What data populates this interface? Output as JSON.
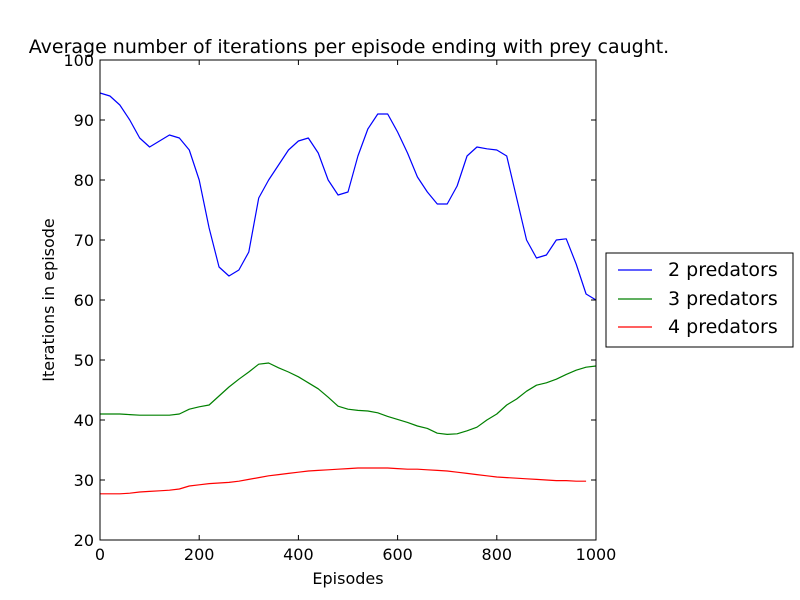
{
  "chart_data": {
    "type": "line",
    "title": "Average number of iterations per episode ending with prey caught.",
    "xlabel": "Episodes",
    "ylabel": "Iterations in episode",
    "xlim": [
      0,
      1000
    ],
    "ylim": [
      20,
      100
    ],
    "xticks": [
      0,
      200,
      400,
      600,
      800,
      1000
    ],
    "yticks": [
      20,
      30,
      40,
      50,
      60,
      70,
      80,
      90,
      100
    ],
    "grid": false,
    "legend_position": "outside-right",
    "series": [
      {
        "name": "2 predators",
        "color": "#0000ff",
        "x": [
          0,
          20,
          40,
          60,
          80,
          100,
          120,
          140,
          160,
          180,
          200,
          220,
          240,
          260,
          280,
          300,
          320,
          340,
          360,
          380,
          400,
          420,
          440,
          460,
          480,
          500,
          520,
          540,
          560,
          580,
          600,
          620,
          640,
          660,
          680,
          700,
          720,
          740,
          760,
          780,
          800,
          820,
          840,
          860,
          880,
          900,
          920,
          940,
          960,
          980,
          1000
        ],
        "y": [
          94.5,
          94,
          92.5,
          90,
          87,
          85.5,
          86.5,
          87.5,
          87,
          85,
          80,
          72,
          65.5,
          64,
          65,
          68,
          77,
          80,
          82.5,
          85,
          86.5,
          87,
          84.5,
          80,
          77.5,
          78,
          84,
          88.5,
          91,
          91,
          88,
          84.5,
          80.5,
          78,
          76,
          76,
          79,
          84,
          85.5,
          85.2,
          85,
          84,
          77,
          70,
          67,
          67.5,
          70,
          70.2,
          66,
          61,
          60
        ]
      },
      {
        "name": "3 predators",
        "color": "#008000",
        "x": [
          0,
          20,
          40,
          60,
          80,
          100,
          120,
          140,
          160,
          180,
          200,
          220,
          240,
          260,
          280,
          300,
          320,
          340,
          360,
          380,
          400,
          420,
          440,
          460,
          480,
          500,
          520,
          540,
          560,
          580,
          600,
          620,
          640,
          660,
          680,
          700,
          720,
          740,
          760,
          780,
          800,
          820,
          840,
          860,
          880,
          900,
          920,
          940,
          960,
          980,
          1000
        ],
        "y": [
          41,
          41,
          41,
          40.9,
          40.8,
          40.8,
          40.8,
          40.8,
          41,
          41.8,
          42.2,
          42.5,
          44,
          45.5,
          46.8,
          48,
          49.3,
          49.5,
          48.7,
          48,
          47.2,
          46.2,
          45.2,
          43.8,
          42.3,
          41.8,
          41.6,
          41.5,
          41.2,
          40.6,
          40.1,
          39.6,
          39,
          38.6,
          37.8,
          37.6,
          37.7,
          38.2,
          38.8,
          40,
          41,
          42.5,
          43.5,
          44.8,
          45.8,
          46.2,
          46.8,
          47.6,
          48.3,
          48.8,
          49
        ]
      },
      {
        "name": "4 predators",
        "color": "#ff0000",
        "x": [
          0,
          20,
          40,
          60,
          80,
          100,
          120,
          140,
          160,
          180,
          200,
          220,
          240,
          260,
          280,
          300,
          320,
          340,
          360,
          380,
          400,
          420,
          440,
          460,
          480,
          500,
          520,
          540,
          560,
          580,
          600,
          620,
          640,
          660,
          680,
          700,
          720,
          740,
          760,
          780,
          800,
          820,
          840,
          860,
          880,
          900,
          920,
          940,
          960,
          980
        ],
        "y": [
          27.7,
          27.7,
          27.7,
          27.8,
          28,
          28.1,
          28.2,
          28.3,
          28.5,
          29,
          29.2,
          29.4,
          29.5,
          29.6,
          29.8,
          30.1,
          30.4,
          30.7,
          30.9,
          31.1,
          31.3,
          31.5,
          31.6,
          31.7,
          31.8,
          31.9,
          32,
          32,
          32,
          32,
          31.9,
          31.8,
          31.8,
          31.7,
          31.6,
          31.5,
          31.3,
          31.1,
          30.9,
          30.7,
          30.5,
          30.4,
          30.3,
          30.2,
          30.1,
          30,
          29.9,
          29.9,
          29.8,
          29.8
        ]
      }
    ]
  }
}
